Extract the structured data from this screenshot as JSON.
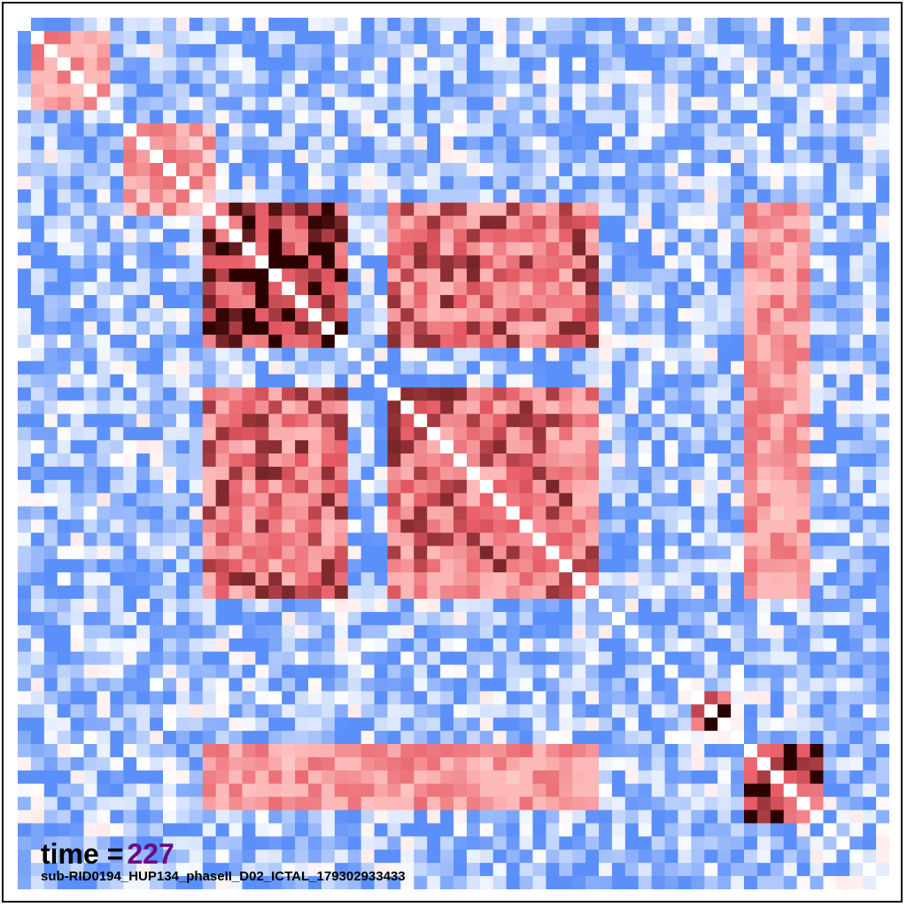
{
  "annotation": {
    "time_prefix": "time =",
    "time_value": "227",
    "recording_id": "sub-RID0194_HUP134_phaseII_D02_ICTAL_179302933433"
  },
  "chart_data": {
    "type": "heatmap",
    "title": "",
    "n_channels": 66,
    "value_range": [
      -1,
      1
    ],
    "colormap": "bwr (blue low, white mid, red/dark-red high)",
    "colors": {
      "low": "#5b8ff9",
      "mid": "#ffffff",
      "high": "#fdb8b8",
      "max": "#2a0000"
    },
    "diagonal": "white (self-connection)",
    "strong_blocks": [
      {
        "rows": [
          14,
          24
        ],
        "cols": [
          14,
          24
        ],
        "strength": "very high"
      },
      {
        "rows": [
          14,
          24
        ],
        "cols": [
          28,
          43
        ],
        "strength": "high"
      },
      {
        "rows": [
          28,
          43
        ],
        "cols": [
          28,
          43
        ],
        "strength": "high"
      },
      {
        "rows": [
          51,
          53
        ],
        "cols": [
          51,
          53
        ],
        "strength": "very high"
      },
      {
        "rows": [
          55,
          60
        ],
        "cols": [
          55,
          60
        ],
        "strength": "very high"
      },
      {
        "rows": [
          55,
          59
        ],
        "cols": [
          14,
          43
        ],
        "strength": "moderate"
      },
      {
        "rows": [
          14,
          43
        ],
        "cols": [
          55,
          59
        ],
        "strength": "moderate"
      },
      {
        "rows": [
          1,
          6
        ],
        "cols": [
          1,
          6
        ],
        "strength": "moderate"
      },
      {
        "rows": [
          8,
          14
        ],
        "cols": [
          8,
          14
        ],
        "strength": "moderate"
      }
    ],
    "grid": false,
    "legend": "none"
  }
}
